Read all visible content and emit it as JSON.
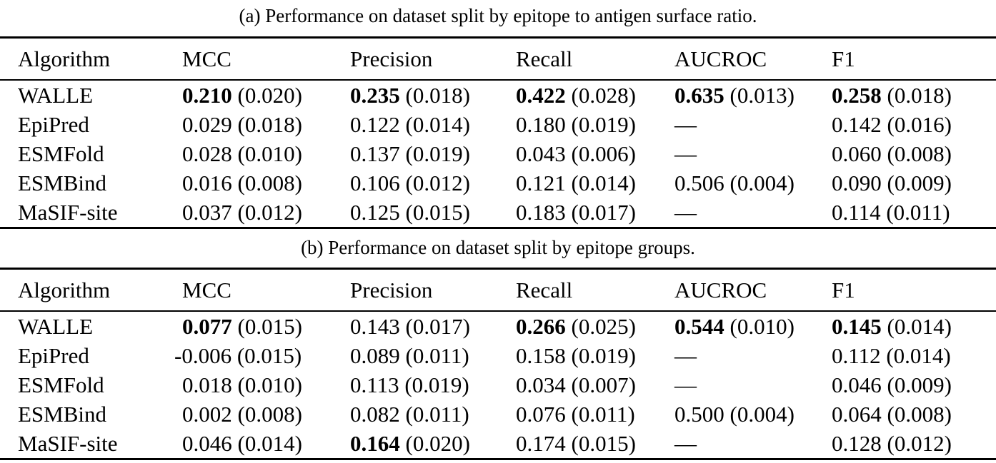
{
  "tables": [
    {
      "caption": "(a) Performance on dataset split by epitope to antigen surface ratio.",
      "columns": [
        "Algorithm",
        "MCC",
        "Precision",
        "Recall",
        "AUCROC",
        "F1"
      ],
      "rows": [
        {
          "name": "WALLE",
          "cells": [
            {
              "value": "0.210",
              "std": "(0.020)",
              "bold": true
            },
            {
              "value": "0.235",
              "std": "(0.018)",
              "bold": true
            },
            {
              "value": "0.422",
              "std": "(0.028)",
              "bold": true
            },
            {
              "value": "0.635",
              "std": "(0.013)",
              "bold": true
            },
            {
              "value": "0.258",
              "std": "(0.018)",
              "bold": true
            }
          ]
        },
        {
          "name": "EpiPred",
          "cells": [
            {
              "value": "0.029",
              "std": "(0.018)",
              "bold": false
            },
            {
              "value": "0.122",
              "std": "(0.014)",
              "bold": false
            },
            {
              "value": "0.180",
              "std": "(0.019)",
              "bold": false
            },
            {
              "value": "—"
            },
            {
              "value": "0.142",
              "std": "(0.016)",
              "bold": false
            }
          ]
        },
        {
          "name": "ESMFold",
          "cells": [
            {
              "value": "0.028",
              "std": "(0.010)",
              "bold": false
            },
            {
              "value": "0.137",
              "std": "(0.019)",
              "bold": false
            },
            {
              "value": "0.043",
              "std": "(0.006)",
              "bold": false
            },
            {
              "value": "—"
            },
            {
              "value": "0.060",
              "std": "(0.008)",
              "bold": false
            }
          ]
        },
        {
          "name": "ESMBind",
          "cells": [
            {
              "value": "0.016",
              "std": "(0.008)",
              "bold": false
            },
            {
              "value": "0.106",
              "std": "(0.012)",
              "bold": false
            },
            {
              "value": "0.121",
              "std": "(0.014)",
              "bold": false
            },
            {
              "value": "0.506",
              "std": "(0.004)",
              "bold": false
            },
            {
              "value": "0.090",
              "std": "(0.009)",
              "bold": false
            }
          ]
        },
        {
          "name": "MaSIF-site",
          "cells": [
            {
              "value": "0.037",
              "std": "(0.012)",
              "bold": false
            },
            {
              "value": "0.125",
              "std": "(0.015)",
              "bold": false
            },
            {
              "value": "0.183",
              "std": "(0.017)",
              "bold": false
            },
            {
              "value": "—"
            },
            {
              "value": "0.114",
              "std": "(0.011)",
              "bold": false
            }
          ]
        }
      ]
    },
    {
      "caption": "(b) Performance on dataset split by epitope groups.",
      "columns": [
        "Algorithm",
        "MCC",
        "Precision",
        "Recall",
        "AUCROC",
        "F1"
      ],
      "rows": [
        {
          "name": "WALLE",
          "cells": [
            {
              "value": "0.077",
              "std": "(0.015)",
              "bold": true
            },
            {
              "value": "0.143",
              "std": "(0.017)",
              "bold": false
            },
            {
              "value": "0.266",
              "std": "(0.025)",
              "bold": true
            },
            {
              "value": "0.544",
              "std": "(0.010)",
              "bold": true
            },
            {
              "value": "0.145",
              "std": "(0.014)",
              "bold": true
            }
          ]
        },
        {
          "name": "EpiPred",
          "cells": [
            {
              "value": "-0.006",
              "std": "(0.015)",
              "bold": false
            },
            {
              "value": "0.089",
              "std": "(0.011)",
              "bold": false
            },
            {
              "value": "0.158",
              "std": "(0.019)",
              "bold": false
            },
            {
              "value": "—"
            },
            {
              "value": "0.112",
              "std": "(0.014)",
              "bold": false
            }
          ]
        },
        {
          "name": "ESMFold",
          "cells": [
            {
              "value": "0.018",
              "std": "(0.010)",
              "bold": false
            },
            {
              "value": "0.113",
              "std": "(0.019)",
              "bold": false
            },
            {
              "value": "0.034",
              "std": "(0.007)",
              "bold": false
            },
            {
              "value": "—"
            },
            {
              "value": "0.046",
              "std": "(0.009)",
              "bold": false
            }
          ]
        },
        {
          "name": "ESMBind",
          "cells": [
            {
              "value": "0.002",
              "std": "(0.008)",
              "bold": false
            },
            {
              "value": "0.082",
              "std": "(0.011)",
              "bold": false
            },
            {
              "value": "0.076",
              "std": "(0.011)",
              "bold": false
            },
            {
              "value": "0.500",
              "std": "(0.004)",
              "bold": false
            },
            {
              "value": "0.064",
              "std": "(0.008)",
              "bold": false
            }
          ]
        },
        {
          "name": "MaSIF-site",
          "cells": [
            {
              "value": "0.046",
              "std": "(0.014)",
              "bold": false
            },
            {
              "value": "0.164",
              "std": "(0.020)",
              "bold": true
            },
            {
              "value": "0.174",
              "std": "(0.015)",
              "bold": false
            },
            {
              "value": "—"
            },
            {
              "value": "0.128",
              "std": "(0.012)",
              "bold": false
            }
          ]
        }
      ]
    }
  ]
}
